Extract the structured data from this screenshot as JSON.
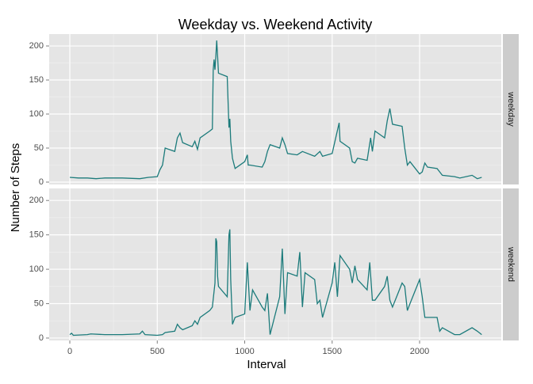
{
  "chart_data": {
    "type": "line",
    "title": "Weekday vs. Weekend Activity",
    "x_label": "Interval",
    "y_label": "Number of Steps",
    "facets": true,
    "grid": true,
    "xlim": [
      -118,
      2467
    ],
    "xticks": [
      0,
      500,
      1000,
      1500,
      2000
    ],
    "ylim": [
      -3.5,
      217.5
    ],
    "yticks": [
      0,
      50,
      100,
      150,
      200
    ],
    "series": [
      {
        "name": "weekday",
        "color": "#1c7b7b",
        "x": [
          0,
          50,
          100,
          150,
          200,
          300,
          400,
          450,
          500,
          515,
          530,
          545,
          600,
          615,
          630,
          645,
          700,
          715,
          730,
          745,
          800,
          815,
          820,
          825,
          830,
          835,
          840,
          845,
          850,
          900,
          910,
          915,
          920,
          930,
          945,
          1000,
          1015,
          1020,
          1030,
          1100,
          1115,
          1130,
          1145,
          1200,
          1215,
          1230,
          1245,
          1300,
          1330,
          1400,
          1430,
          1445,
          1500,
          1540,
          1545,
          1600,
          1615,
          1630,
          1645,
          1700,
          1720,
          1730,
          1745,
          1800,
          1815,
          1830,
          1845,
          1900,
          1915,
          1930,
          1945,
          2000,
          2015,
          2030,
          2045,
          2100,
          2115,
          2130,
          2200,
          2230,
          2300,
          2330,
          2355
        ],
        "values": [
          7,
          6,
          6,
          5,
          6,
          6,
          5,
          7,
          8,
          18,
          25,
          50,
          45,
          65,
          72,
          58,
          52,
          60,
          48,
          65,
          75,
          78,
          165,
          180,
          165,
          185,
          208,
          185,
          160,
          155,
          80,
          93,
          60,
          35,
          20,
          30,
          40,
          25,
          25,
          22,
          30,
          45,
          55,
          50,
          65,
          55,
          42,
          40,
          45,
          38,
          45,
          38,
          42,
          87,
          60,
          50,
          30,
          28,
          35,
          32,
          65,
          45,
          75,
          65,
          90,
          108,
          85,
          82,
          50,
          25,
          30,
          12,
          15,
          28,
          22,
          20,
          15,
          10,
          8,
          6,
          10,
          5,
          7
        ]
      },
      {
        "name": "weekend",
        "color": "#1c7b7b",
        "x": [
          0,
          10,
          20,
          100,
          120,
          200,
          300,
          400,
          415,
          430,
          500,
          530,
          545,
          600,
          615,
          630,
          645,
          700,
          715,
          730,
          745,
          800,
          815,
          830,
          835,
          840,
          845,
          850,
          900,
          910,
          915,
          920,
          930,
          945,
          1000,
          1015,
          1030,
          1045,
          1100,
          1115,
          1130,
          1145,
          1200,
          1215,
          1230,
          1245,
          1300,
          1315,
          1330,
          1345,
          1400,
          1415,
          1430,
          1445,
          1500,
          1515,
          1530,
          1545,
          1600,
          1615,
          1630,
          1645,
          1700,
          1715,
          1730,
          1745,
          1800,
          1815,
          1830,
          1845,
          1900,
          1915,
          1930,
          1945,
          2000,
          2015,
          2030,
          2100,
          2115,
          2130,
          2200,
          2230,
          2300,
          2330,
          2355
        ],
        "values": [
          5,
          7,
          4,
          5,
          6,
          5,
          5,
          6,
          10,
          5,
          4,
          5,
          8,
          10,
          20,
          15,
          12,
          18,
          25,
          20,
          30,
          40,
          45,
          80,
          145,
          140,
          90,
          75,
          60,
          150,
          158,
          85,
          20,
          30,
          35,
          110,
          40,
          70,
          45,
          40,
          65,
          5,
          60,
          130,
          35,
          95,
          90,
          125,
          45,
          95,
          85,
          50,
          55,
          30,
          80,
          110,
          60,
          120,
          100,
          80,
          105,
          85,
          70,
          110,
          55,
          55,
          75,
          90,
          55,
          45,
          80,
          75,
          40,
          50,
          85,
          60,
          30,
          30,
          10,
          15,
          5,
          5,
          15,
          10,
          5
        ]
      }
    ]
  }
}
